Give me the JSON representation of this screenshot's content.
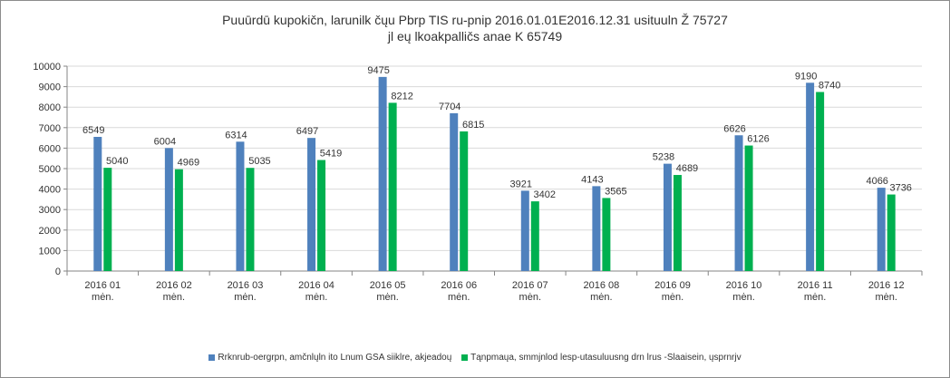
{
  "chart_data": {
    "type": "bar",
    "title_line1": "Puuūrdū kupokičn, larunilk čųu Pbrp TIS ru-pnip 2016.01.01E2016.12.31  usituuln Ž 75727",
    "title_line2": "jl eų lkoakpalličs anae K 65749",
    "categories": [
      [
        "2016 01",
        "mėn."
      ],
      [
        "2016 02",
        "mėn."
      ],
      [
        "2016 03",
        "mėn."
      ],
      [
        "2016 04",
        "mėn."
      ],
      [
        "2016 05",
        "mėn."
      ],
      [
        "2016 06",
        "mėn."
      ],
      [
        "2016 07",
        "mėn."
      ],
      [
        "2016 08",
        "mėn."
      ],
      [
        "2016 09",
        "mėn."
      ],
      [
        "2016 10",
        "mėn."
      ],
      [
        "2016 11",
        "mėn."
      ],
      [
        "2016 12",
        "mėn."
      ]
    ],
    "series": [
      {
        "name": "Rrknrub-oergrpn, amčnlųln ito Lnum GSA siiklre, akjeadoų",
        "color": "#4f81bd",
        "values": [
          6549,
          6004,
          6314,
          6497,
          9475,
          7704,
          3921,
          4143,
          5238,
          6626,
          9190,
          4066
        ]
      },
      {
        "name": "Tąnpmaųa, smmjnlod lesp-utasuluusng drn lrus -Slaaisein, ųsprnrjv",
        "color": "#00b050",
        "values": [
          5040,
          4969,
          5035,
          5419,
          8212,
          6815,
          3402,
          3565,
          4689,
          6126,
          8740,
          3736
        ]
      }
    ],
    "yticks": [
      "0",
      "1000",
      "2000",
      "3000",
      "4000",
      "5000",
      "6000",
      "7000",
      "8000",
      "9000",
      "10000"
    ],
    "ylim": [
      0,
      10000
    ],
    "grid": true,
    "legend_position": "bottom"
  }
}
